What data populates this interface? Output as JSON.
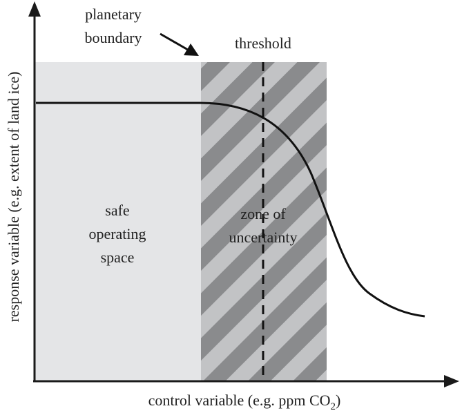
{
  "labels": {
    "planetary_boundary_line1": "planetary",
    "planetary_boundary_line2": "boundary",
    "threshold": "threshold",
    "safe_line1": "safe",
    "safe_line2": "operating",
    "safe_line3": "space",
    "zone_line1": "zone of",
    "zone_line2": "uncertainty",
    "x_axis_prefix": "control variable (e.g. ppm CO",
    "x_axis_subscript": "2",
    "x_axis_suffix": ")",
    "y_axis": "response variable (e.g. extent of land ice)"
  },
  "colors": {
    "axis": "#1a1a1a",
    "safe_region": "#e4e5e7",
    "zone_light": "#c2c3c5",
    "zone_stripe": "#8a8b8d",
    "curve": "#111111",
    "threshold_line": "#111111",
    "text": "#222222"
  }
}
